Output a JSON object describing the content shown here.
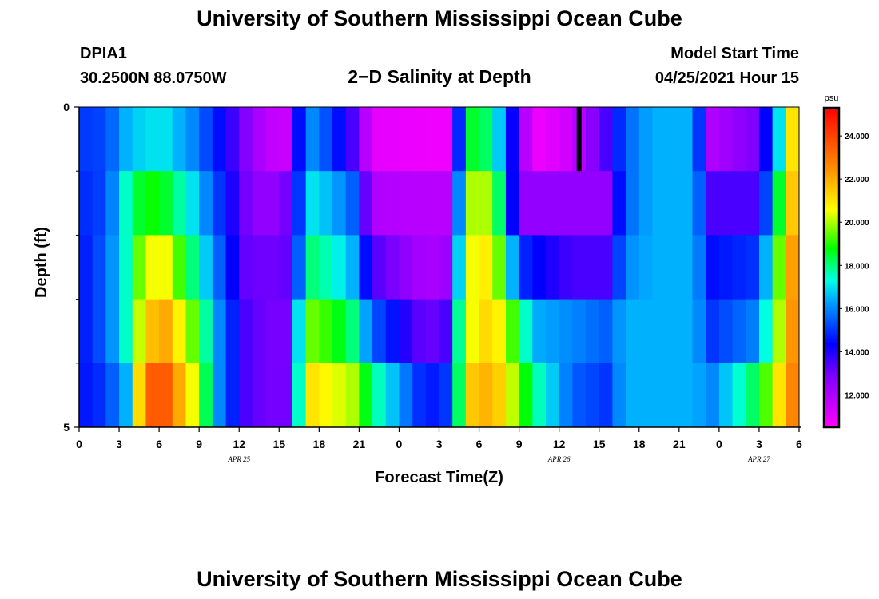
{
  "header": {
    "title": "University of Southern Mississippi Ocean Cube",
    "station": "DPIA1",
    "coordinates": "30.2500N  88.0750W",
    "subtitle": "2−D Salinity at Depth",
    "model_label": "Model Start Time",
    "model_time": "04/25/2021 Hour 15"
  },
  "footer": {
    "title": "University of Southern Mississippi Ocean Cube"
  },
  "chart_data": {
    "type": "heatmap",
    "title": "2−D Salinity at Depth",
    "xlabel": "Forecast Time(Z)",
    "ylabel": "Depth (ft)",
    "x_ticks": [
      "0",
      "3",
      "6",
      "9",
      "12",
      "15",
      "18",
      "21",
      "0",
      "3",
      "6",
      "9",
      "12",
      "15",
      "18",
      "21",
      "0",
      "3",
      "6"
    ],
    "date_labels": [
      {
        "label": "APR  25",
        "at_hour": 12
      },
      {
        "label": "APR  26",
        "at_hour": 36
      },
      {
        "label": "APR  27",
        "at_hour": 51
      }
    ],
    "y_tick_labels": [
      {
        "value": 0,
        "label": "0"
      },
      {
        "value": 5,
        "label": "5"
      }
    ],
    "y_minor_ticks": [
      1,
      2,
      3,
      4
    ],
    "xlim": [
      0,
      54
    ],
    "ylim": [
      0,
      5
    ],
    "colorbar": {
      "unit": "psu",
      "min": 10.5,
      "max": 25.3,
      "tick_values": [
        12,
        14,
        16,
        18,
        20,
        22,
        24
      ],
      "tick_labels": [
        "12.000",
        "14.000",
        "16.000",
        "18.000",
        "20.000",
        "22.000",
        "24.000"
      ]
    },
    "depth_layers": [
      0,
      1,
      2,
      3,
      4
    ],
    "keyframes": [
      {
        "hour": 0,
        "values": [
          15.0,
          14.8,
          14.5,
          14.5,
          14.5
        ]
      },
      {
        "hour": 2,
        "values": [
          15.2,
          15.2,
          15.5,
          15.5,
          15.0
        ]
      },
      {
        "hour": 3.5,
        "values": [
          16.5,
          17.5,
          17.5,
          17.5,
          16.5
        ]
      },
      {
        "hour": 5,
        "values": [
          17.0,
          19.0,
          20.5,
          21.5,
          23.5
        ]
      },
      {
        "hour": 6.5,
        "values": [
          17.0,
          18.5,
          20.5,
          22.0,
          23.5
        ]
      },
      {
        "hour": 8.5,
        "values": [
          16.0,
          17.0,
          18.0,
          19.5,
          20.5
        ]
      },
      {
        "hour": 10.5,
        "values": [
          14.5,
          15.0,
          15.5,
          16.0,
          16.0
        ]
      },
      {
        "hour": 12.5,
        "values": [
          12.8,
          13.0,
          13.2,
          13.5,
          13.5
        ]
      },
      {
        "hour": 14,
        "values": [
          11.7,
          12.3,
          13.0,
          13.0,
          13.0
        ]
      },
      {
        "hour": 15.5,
        "values": [
          11.5,
          13.0,
          13.2,
          13.0,
          13.0
        ]
      },
      {
        "hour": 16.5,
        "values": [
          14.5,
          15.0,
          15.5,
          17.0,
          17.5
        ]
      },
      {
        "hour": 17.5,
        "values": [
          16.0,
          17.0,
          18.0,
          19.5,
          21.0
        ]
      },
      {
        "hour": 19,
        "values": [
          15.0,
          16.5,
          17.5,
          19.0,
          20.5
        ]
      },
      {
        "hour": 20.5,
        "values": [
          13.5,
          15.5,
          16.5,
          18.0,
          20.0
        ]
      },
      {
        "hour": 22,
        "values": [
          11.0,
          12.0,
          13.5,
          15.5,
          18.0
        ]
      },
      {
        "hour": 26,
        "values": [
          10.8,
          11.8,
          12.0,
          13.0,
          14.5
        ]
      },
      {
        "hour": 27.5,
        "values": [
          10.8,
          11.8,
          12.3,
          13.5,
          15.0
        ]
      },
      {
        "hour": 28,
        "values": [
          13.0,
          14.0,
          15.0,
          16.5,
          16.5
        ]
      },
      {
        "hour": 29.5,
        "values": [
          18.5,
          20.0,
          20.5,
          20.5,
          21.5
        ]
      },
      {
        "hour": 31,
        "values": [
          18.0,
          20.0,
          21.0,
          21.5,
          22.0
        ]
      },
      {
        "hour": 33,
        "values": [
          13.0,
          12.5,
          15.0,
          18.5,
          19.5
        ]
      },
      {
        "hour": 34,
        "values": [
          10.7,
          12.5,
          14.5,
          16.5,
          18.0
        ]
      },
      {
        "hour": 37,
        "values": [
          11.5,
          12.5,
          13.5,
          16.0,
          15.5
        ]
      },
      {
        "hour": 39.5,
        "values": [
          13.5,
          12.5,
          13.5,
          15.5,
          15.0
        ]
      },
      {
        "hour": 41,
        "values": [
          15.5,
          15.5,
          16.0,
          16.5,
          16.5
        ]
      },
      {
        "hour": 43,
        "values": [
          16.5,
          16.5,
          16.5,
          16.5,
          16.5
        ]
      },
      {
        "hour": 46,
        "values": [
          16.5,
          16.5,
          16.5,
          16.5,
          16.5
        ]
      },
      {
        "hour": 47.5,
        "values": [
          12.0,
          13.5,
          14.5,
          15.0,
          16.0
        ]
      },
      {
        "hour": 51,
        "values": [
          13.0,
          13.5,
          15.0,
          16.0,
          18.5
        ]
      },
      {
        "hour": 52.5,
        "values": [
          17.0,
          18.5,
          19.5,
          20.0,
          21.0
        ]
      },
      {
        "hour": 54,
        "values": [
          23.0,
          23.0,
          23.5,
          23.5,
          23.5
        ]
      }
    ],
    "marker_hour": 37.5,
    "grid": false,
    "legend": "colorbar-right"
  }
}
